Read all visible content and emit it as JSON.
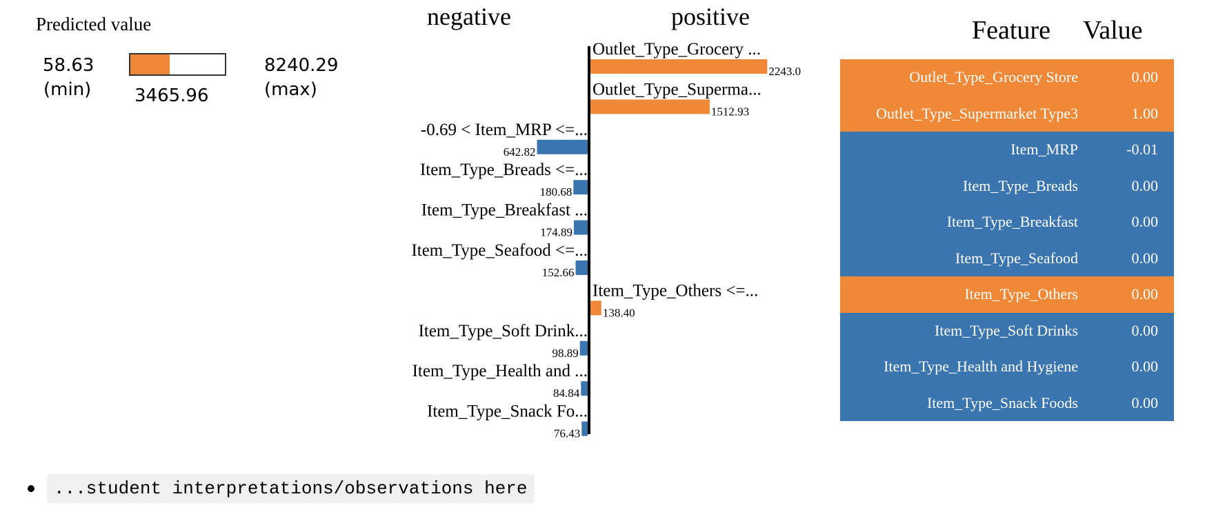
{
  "predicted": {
    "title": "Predicted value",
    "min_value": "58.63",
    "min_label": "(min)",
    "max_value": "8240.29",
    "max_label": "(max)",
    "value_text": "3465.96",
    "fill_fraction": 0.4129
  },
  "chart_data": {
    "type": "bar",
    "orientation": "horizontal",
    "negative_label": "negative",
    "positive_label": "positive",
    "colors": {
      "negative": "#3a75b0",
      "positive": "#ef8837"
    },
    "bars": [
      {
        "label": "Outlet_Type_Grocery ...",
        "value": 2243.0,
        "value_text": "2243.0",
        "direction": "positive"
      },
      {
        "label": "Outlet_Type_Superma...",
        "value": 1512.93,
        "value_text": "1512.93",
        "direction": "positive"
      },
      {
        "label": "-0.69 < Item_MRP <=...",
        "value": 642.82,
        "value_text": "642.82",
        "direction": "negative"
      },
      {
        "label": "Item_Type_Breads <=...",
        "value": 180.68,
        "value_text": "180.68",
        "direction": "negative"
      },
      {
        "label": "Item_Type_Breakfast ...",
        "value": 174.89,
        "value_text": "174.89",
        "direction": "negative"
      },
      {
        "label": "Item_Type_Seafood <=...",
        "value": 152.66,
        "value_text": "152.66",
        "direction": "negative"
      },
      {
        "label": "Item_Type_Others <=...",
        "value": 138.4,
        "value_text": "138.40",
        "direction": "positive"
      },
      {
        "label": "Item_Type_Soft Drink...",
        "value": 98.89,
        "value_text": "98.89",
        "direction": "negative"
      },
      {
        "label": "Item_Type_Health and ...",
        "value": 84.84,
        "value_text": "84.84",
        "direction": "negative"
      },
      {
        "label": "Item_Type_Snack Fo...",
        "value": 76.43,
        "value_text": "76.43",
        "direction": "negative"
      }
    ]
  },
  "table": {
    "header_feature": "Feature",
    "header_value": "Value",
    "rows": [
      {
        "feature": "Outlet_Type_Grocery Store",
        "value": "0.00",
        "color": "#ef8837"
      },
      {
        "feature": "Outlet_Type_Supermarket Type3",
        "value": "1.00",
        "color": "#ef8837"
      },
      {
        "feature": "Item_MRP",
        "value": "-0.01",
        "color": "#3a75b0"
      },
      {
        "feature": "Item_Type_Breads",
        "value": "0.00",
        "color": "#3a75b0"
      },
      {
        "feature": "Item_Type_Breakfast",
        "value": "0.00",
        "color": "#3a75b0"
      },
      {
        "feature": "Item_Type_Seafood",
        "value": "0.00",
        "color": "#3a75b0"
      },
      {
        "feature": "Item_Type_Others",
        "value": "0.00",
        "color": "#ef8837"
      },
      {
        "feature": "Item_Type_Soft Drinks",
        "value": "0.00",
        "color": "#3a75b0"
      },
      {
        "feature": "Item_Type_Health and Hygiene",
        "value": "0.00",
        "color": "#3a75b0"
      },
      {
        "feature": "Item_Type_Snack Foods",
        "value": "0.00",
        "color": "#3a75b0"
      }
    ]
  },
  "note": {
    "text": "...student interpretations/observations here"
  }
}
